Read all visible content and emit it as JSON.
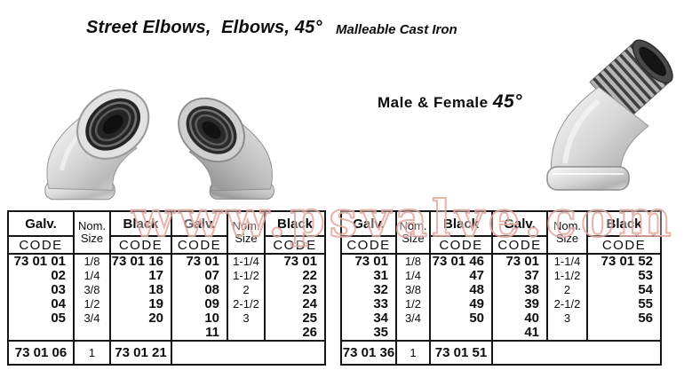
{
  "header": {
    "title": "Street Elbows,  Elbows, 45°",
    "subtitle": "Malleable Cast Iron",
    "caption": "Male & Female ",
    "caption_angle": "45°"
  },
  "watermark": {
    "text": "www.psvalve.com",
    "outline_color": "#dfa79f"
  },
  "images": {
    "left": "galvanized 45-degree elbow, female threads",
    "middle": "stainless 45-degree elbow, female threads",
    "right": "galvanized 45-degree street elbow, male and female"
  },
  "table_labels": {
    "galv": "Galv.",
    "black": "Black",
    "nom": "Nom.",
    "size": "Size",
    "code": "CODE"
  },
  "left_table": {
    "galv_small": [
      "73 01 01",
      "02",
      "03",
      "04",
      "05"
    ],
    "size_small": [
      "1/8",
      "1/4",
      "3/8",
      "1/2",
      "3/4"
    ],
    "black_small": [
      "73 01 16",
      "17",
      "18",
      "19",
      "20"
    ],
    "galv_large": [
      "73 01 07",
      "08",
      "09",
      "10",
      "11"
    ],
    "size_large": [
      "1-1/4",
      "1-1/2",
      "2",
      "2-1/2",
      "3"
    ],
    "black_large": [
      "73 01 22",
      "23",
      "24",
      "25",
      "26"
    ],
    "footer": {
      "galv": "73 01 06",
      "size": "1",
      "black": "73 01 21"
    }
  },
  "right_table": {
    "galv_small": [
      "73 01 31",
      "32",
      "33",
      "34",
      "35"
    ],
    "size_small": [
      "1/8",
      "1/4",
      "3/8",
      "1/2",
      "3/4"
    ],
    "black_small": [
      "73 01 46",
      "47",
      "48",
      "49",
      "50"
    ],
    "galv_large": [
      "73 01 37",
      "38",
      "39",
      "40",
      "41"
    ],
    "size_large": [
      "1-1/4",
      "1-1/2",
      "2",
      "2-1/2",
      "3"
    ],
    "black_large": [
      "73 01 52",
      "53",
      "54",
      "55",
      "56"
    ],
    "footer": {
      "galv": "73 01 36",
      "size": "1",
      "black": "73 01 51"
    }
  }
}
